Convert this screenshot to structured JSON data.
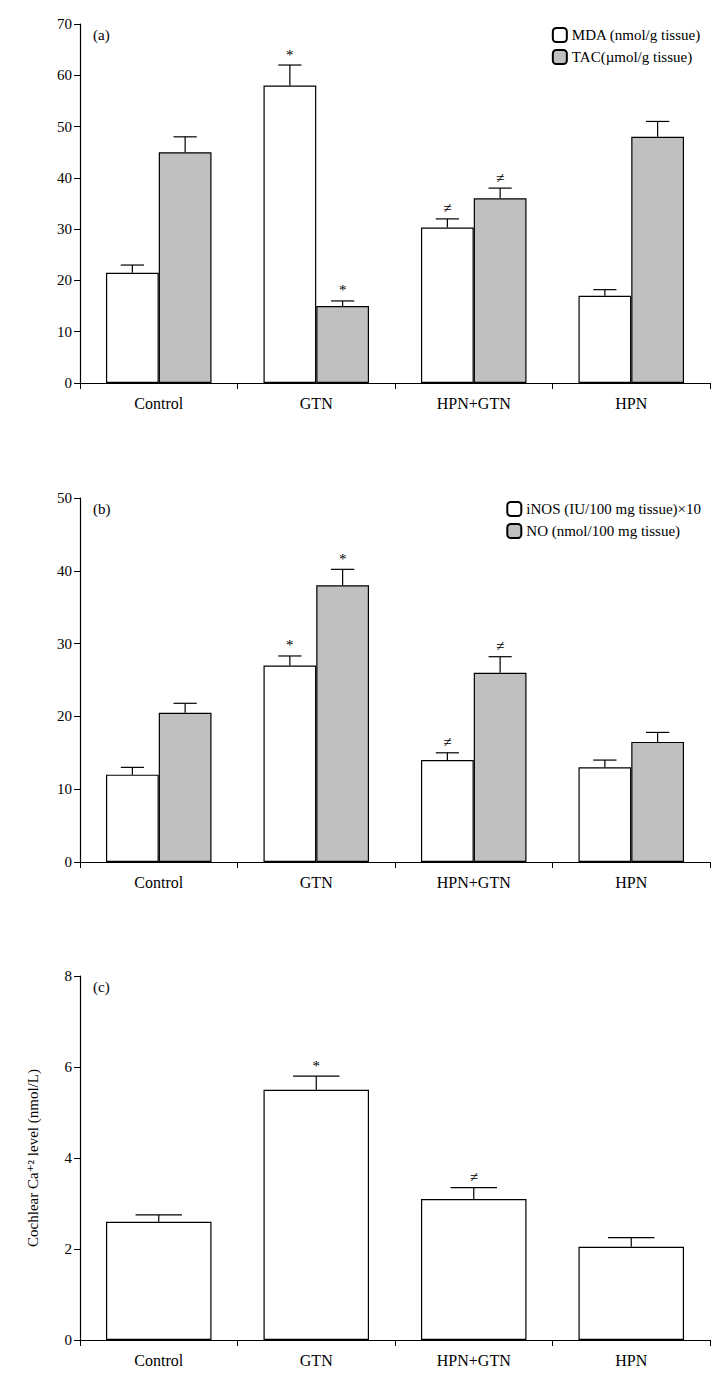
{
  "chart_data": [
    {
      "type": "bar",
      "title": "(a)",
      "categories": [
        "Control",
        "GTN",
        "HPN+GTN",
        "HPN"
      ],
      "series": [
        {
          "name": "MDA (nmol/g tissue)",
          "color": "#ffffff",
          "values": [
            21.5,
            58,
            30.3,
            17
          ],
          "errors": [
            1.5,
            4,
            1.7,
            1.2
          ],
          "annotations": [
            null,
            "*",
            "≠",
            null
          ]
        },
        {
          "name": "TAC(µmol/g tissue)",
          "color": "#c0c0c0",
          "values": [
            45,
            15,
            36,
            48
          ],
          "errors": [
            3,
            1,
            2,
            3
          ],
          "annotations": [
            null,
            "*",
            "≠",
            null
          ]
        }
      ],
      "ylim": [
        0,
        70
      ],
      "yticks": [
        0,
        10,
        20,
        30,
        40,
        50,
        60,
        70
      ],
      "grid": false,
      "legend": "upper right"
    },
    {
      "type": "bar",
      "title": "(b)",
      "categories": [
        "Control",
        "GTN",
        "HPN+GTN",
        "HPN"
      ],
      "series": [
        {
          "name": "iNOS (IU/100 mg tissue)×10",
          "color": "#ffffff",
          "values": [
            12,
            27,
            14,
            13
          ],
          "errors": [
            1,
            1.3,
            1,
            1
          ],
          "annotations": [
            null,
            "*",
            "≠",
            null
          ]
        },
        {
          "name": "NO (nmol/100 mg tissue)",
          "color": "#c0c0c0",
          "values": [
            20.5,
            38,
            26,
            16.5
          ],
          "errors": [
            1.3,
            2.2,
            2.2,
            1.3
          ],
          "annotations": [
            null,
            "*",
            "≠",
            null
          ]
        }
      ],
      "ylim": [
        0,
        50
      ],
      "yticks": [
        0,
        10,
        20,
        30,
        40,
        50
      ],
      "grid": false,
      "legend": "upper right"
    },
    {
      "type": "bar",
      "title": "(c)",
      "ylabel": "Cochlear Ca⁺² level (nmol/L)",
      "categories": [
        "Control",
        "GTN",
        "HPN+GTN",
        "HPN"
      ],
      "color": "#ffffff",
      "values": [
        2.6,
        5.5,
        3.1,
        2.05
      ],
      "errors": [
        0.15,
        0.3,
        0.25,
        0.2
      ],
      "annotations": [
        null,
        "*",
        "≠",
        null
      ],
      "ylim": [
        0,
        8
      ],
      "yticks": [
        0,
        2,
        4,
        6,
        8
      ],
      "grid": false
    }
  ]
}
